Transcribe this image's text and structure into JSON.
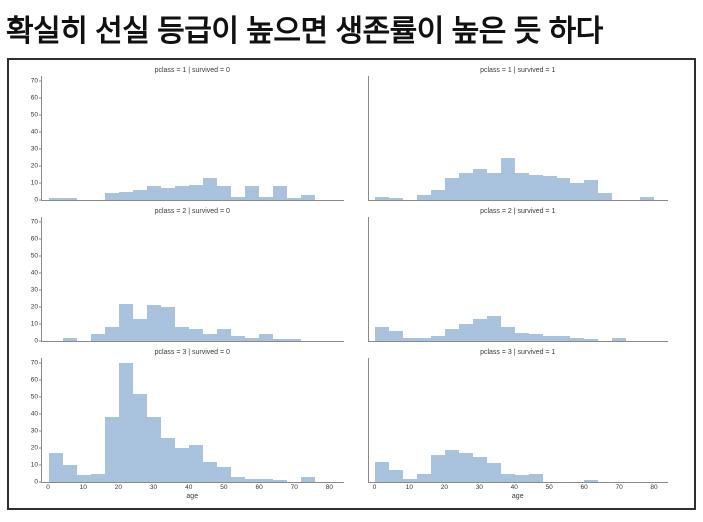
{
  "page": {
    "heading": "확실히 선실 등급이 높으면 생존률이 높은 듯 하다"
  },
  "figure": {
    "background": "#ffffff",
    "border_color": "#2f2f2f",
    "bar_color": "#a9c3df",
    "spine_color": "#8a8a8a"
  },
  "chart_data": {
    "type": "bar",
    "chart_kind": "faceted-histograms",
    "facet_rows": "pclass (1,2,3)",
    "facet_cols": "survived (0,1)",
    "xlabel": "age",
    "ylabel": "",
    "bin_start": 0,
    "bin_width": 4,
    "xlim": [
      -2,
      84
    ],
    "ylim": [
      0,
      73
    ],
    "x_ticks": [
      0,
      10,
      20,
      30,
      40,
      50,
      60,
      70,
      80
    ],
    "y_ticks": [
      0,
      10,
      20,
      30,
      40,
      50,
      60,
      70
    ],
    "grid": false,
    "legend": "none",
    "panels": [
      {
        "title": "pclass = 1 | survived = 0",
        "values": [
          1,
          1,
          0,
          0,
          4,
          5,
          6,
          8,
          7,
          8,
          9,
          13,
          8,
          2,
          8,
          2,
          8,
          1,
          3,
          0
        ]
      },
      {
        "title": "pclass = 1 | survived = 1",
        "values": [
          2,
          1,
          0,
          3,
          6,
          13,
          16,
          18,
          16,
          25,
          16,
          15,
          14,
          13,
          10,
          12,
          4,
          0,
          0,
          2
        ]
      },
      {
        "title": "pclass = 2 | survived = 0",
        "values": [
          0,
          2,
          0,
          4,
          8,
          22,
          13,
          21,
          20,
          8,
          7,
          4,
          7,
          3,
          2,
          4,
          1,
          1,
          0,
          0
        ]
      },
      {
        "title": "pclass = 2 | survived = 1",
        "values": [
          8,
          6,
          2,
          2,
          3,
          7,
          10,
          13,
          15,
          8,
          5,
          4,
          3,
          3,
          2,
          1,
          0,
          2,
          0,
          0
        ]
      },
      {
        "title": "pclass = 3 | survived = 0",
        "values": [
          17,
          10,
          4,
          5,
          38,
          70,
          52,
          38,
          26,
          20,
          22,
          12,
          9,
          3,
          2,
          2,
          1,
          0,
          3,
          0
        ]
      },
      {
        "title": "pclass = 3 | survived = 1",
        "values": [
          12,
          7,
          2,
          5,
          16,
          19,
          17,
          15,
          11,
          5,
          4,
          5,
          0,
          0,
          0,
          1,
          0,
          0,
          0,
          0
        ]
      }
    ]
  }
}
